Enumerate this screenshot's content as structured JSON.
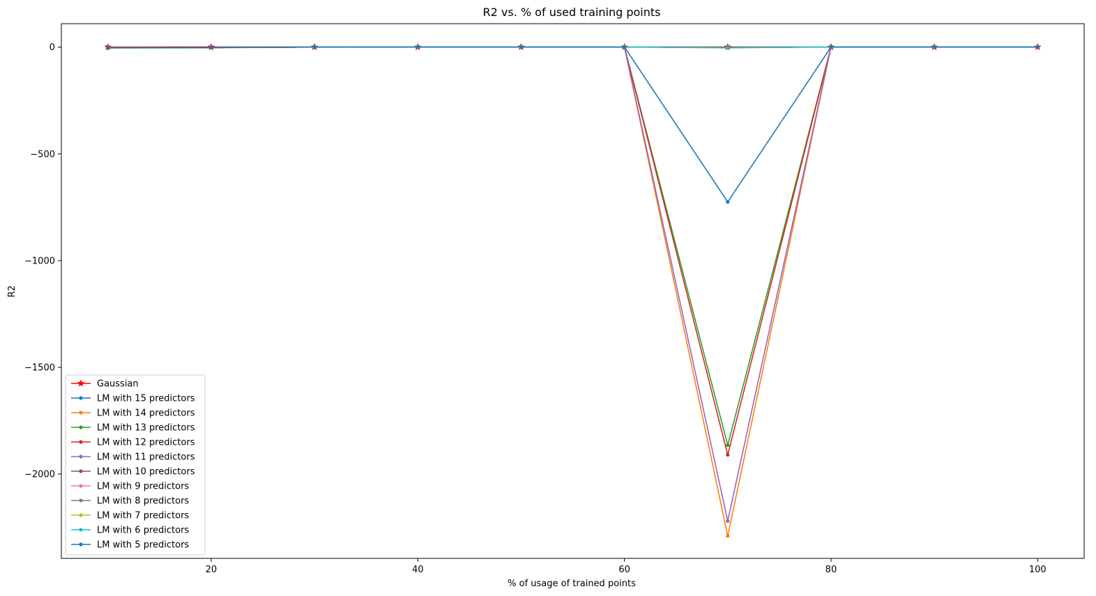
{
  "chart_data": {
    "type": "line",
    "title": "R2 vs. % of used training points",
    "xlabel": "% of usage of trained points",
    "ylabel": "R2",
    "x": [
      10,
      20,
      30,
      40,
      50,
      60,
      70,
      80,
      90,
      100
    ],
    "xlim": [
      5.5,
      104.5
    ],
    "ylim": [
      -2395,
      110
    ],
    "xticks": [
      20,
      40,
      60,
      80,
      100
    ],
    "yticks": [
      0,
      -500,
      -1000,
      -1500,
      -2000
    ],
    "xtick_labels": [
      "20",
      "40",
      "60",
      "80",
      "100"
    ],
    "ytick_labels": [
      "0",
      "−500",
      "−1000",
      "−1500",
      "−2000"
    ],
    "legend_position": "lower-left",
    "grid": false,
    "series": [
      {
        "name": "Gaussian",
        "color": "#ff0000",
        "marker": "star",
        "values": [
          0.6,
          0.7,
          0.75,
          0.78,
          0.8,
          0.82,
          0.83,
          0.84,
          0.85,
          0.86
        ]
      },
      {
        "name": "LM with 15 predictors",
        "color": "#1f77b4",
        "marker": "dot",
        "values": [
          -3,
          -2,
          0.5,
          0.7,
          0.75,
          0.8,
          -3,
          0.8,
          0.85,
          0.86
        ]
      },
      {
        "name": "LM with 14 predictors",
        "color": "#ff7f0e",
        "marker": "dot",
        "values": [
          -4,
          -3,
          0.5,
          0.7,
          0.75,
          0.8,
          -2290,
          0.8,
          0.85,
          0.86
        ]
      },
      {
        "name": "LM with 13 predictors",
        "color": "#2ca02c",
        "marker": "dot",
        "values": [
          -3,
          -2,
          0.5,
          0.7,
          0.75,
          0.8,
          -1865,
          0.8,
          0.85,
          0.86
        ]
      },
      {
        "name": "LM with 12 predictors",
        "color": "#d62728",
        "marker": "dot",
        "values": [
          -3,
          -2,
          0.5,
          0.7,
          0.75,
          0.8,
          -1910,
          0.8,
          0.85,
          0.86
        ]
      },
      {
        "name": "LM with 11 predictors",
        "color": "#9467bd",
        "marker": "dot",
        "values": [
          -3,
          -2,
          0.5,
          0.7,
          0.75,
          0.8,
          -2220,
          0.8,
          0.85,
          0.86
        ]
      },
      {
        "name": "LM with 10 predictors",
        "color": "#8c564b",
        "marker": "dot",
        "values": [
          -3,
          -2,
          0.5,
          0.7,
          0.75,
          0.8,
          -2,
          0.8,
          0.85,
          0.86
        ]
      },
      {
        "name": "LM with 9 predictors",
        "color": "#e377c2",
        "marker": "dot",
        "values": [
          -3,
          -2,
          0.5,
          0.7,
          0.75,
          0.8,
          -2,
          0.8,
          0.85,
          0.86
        ]
      },
      {
        "name": "LM with 8 predictors",
        "color": "#7f7f7f",
        "marker": "dot",
        "values": [
          -3,
          -2,
          0.5,
          0.7,
          0.75,
          0.8,
          -2,
          0.8,
          0.85,
          0.86
        ]
      },
      {
        "name": "LM with 7 predictors",
        "color": "#bcbd22",
        "marker": "dot",
        "values": [
          -3,
          -2,
          0.5,
          0.7,
          0.75,
          0.8,
          -2,
          0.8,
          0.85,
          0.86
        ]
      },
      {
        "name": "LM with 6 predictors",
        "color": "#17becf",
        "marker": "dot",
        "values": [
          -3,
          -2,
          0.5,
          0.7,
          0.75,
          0.8,
          -2,
          0.8,
          0.85,
          0.86
        ]
      },
      {
        "name": "LM with 5 predictors",
        "color": "#1f77b4",
        "marker": "dot",
        "values": [
          -3,
          -2,
          0.5,
          0.7,
          0.75,
          0.8,
          -725,
          0.8,
          0.85,
          0.86
        ]
      }
    ]
  }
}
